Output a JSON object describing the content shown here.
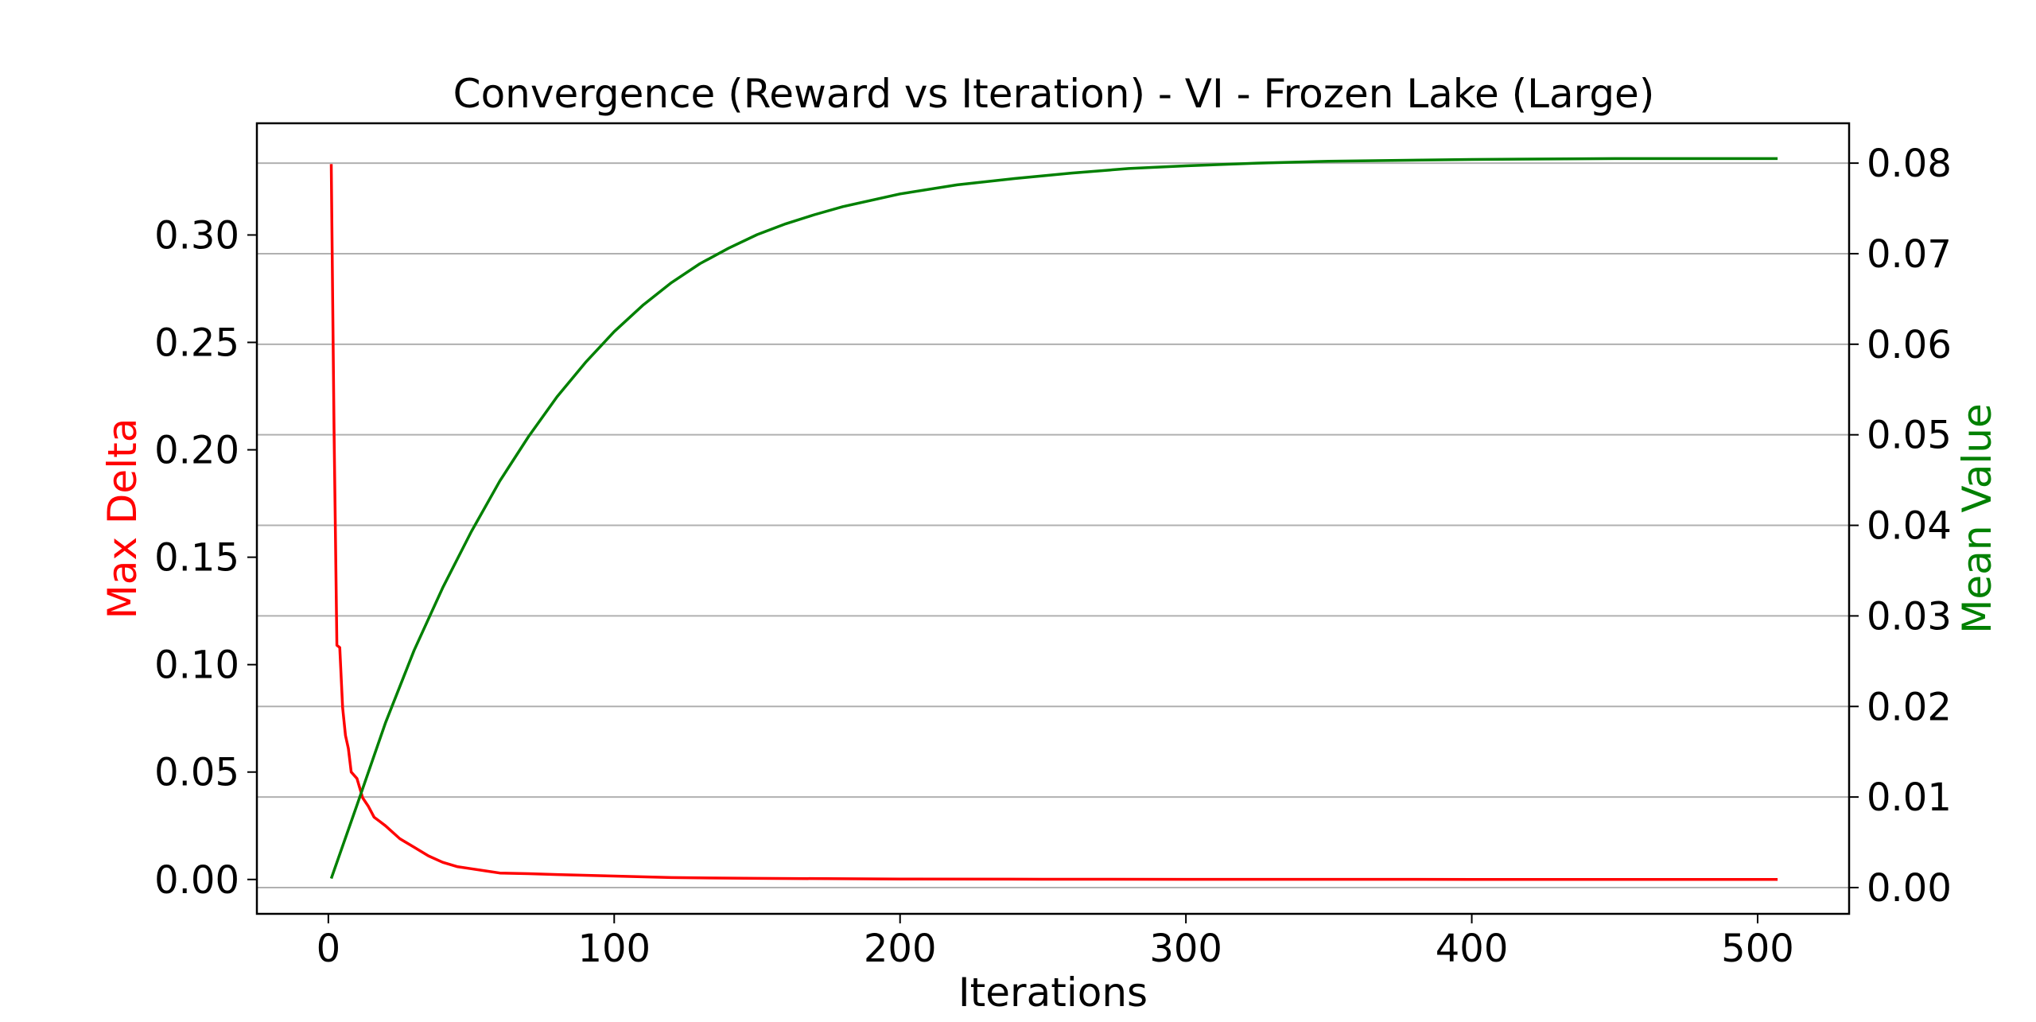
{
  "chart_data": {
    "type": "line",
    "title": "Convergence (Reward vs Iteration) - VI - Frozen Lake (Large)",
    "xlabel": "Iterations",
    "xlim": [
      -25,
      532
    ],
    "xticks": [
      0,
      100,
      200,
      300,
      400,
      500
    ],
    "grid": "horizontal (right axis)",
    "axes": {
      "left": {
        "label": "Max Delta",
        "color": "#ff0000",
        "ylim": [
          -0.016,
          0.352
        ],
        "ticks": [
          "0.00",
          "0.05",
          "0.10",
          "0.15",
          "0.20",
          "0.25",
          "0.30"
        ]
      },
      "right": {
        "label": "Mean Value",
        "color": "#008000",
        "ylim": [
          -0.0029,
          0.0844
        ],
        "ticks": [
          "0.00",
          "0.01",
          "0.02",
          "0.03",
          "0.04",
          "0.05",
          "0.06",
          "0.07",
          "0.08"
        ]
      }
    },
    "series": [
      {
        "axis": "left",
        "color": "#ff0000",
        "x": [
          1,
          2,
          3,
          4,
          5,
          6,
          7,
          8,
          10,
          12,
          14,
          16,
          18,
          20,
          25,
          30,
          35,
          40,
          45,
          50,
          55,
          60,
          70,
          80,
          100,
          120,
          150,
          200,
          250,
          300,
          400,
          507
        ],
        "y": [
          0.333,
          0.21,
          0.109,
          0.108,
          0.08,
          0.067,
          0.061,
          0.05,
          0.047,
          0.038,
          0.034,
          0.029,
          0.027,
          0.025,
          0.019,
          0.015,
          0.011,
          0.008,
          0.006,
          0.005,
          0.004,
          0.003,
          0.0027,
          0.0023,
          0.0016,
          0.0009,
          0.0005,
          0.0002,
          0.0001,
          5e-05,
          2e-05,
          0.0
        ]
      },
      {
        "axis": "right",
        "color": "#008000",
        "x": [
          1,
          10,
          20,
          30,
          40,
          50,
          60,
          70,
          80,
          90,
          100,
          110,
          120,
          130,
          140,
          150,
          160,
          170,
          180,
          200,
          220,
          240,
          260,
          280,
          300,
          325,
          350,
          400,
          450,
          507
        ],
        "y": [
          0.001,
          0.0091,
          0.0182,
          0.0262,
          0.0331,
          0.0393,
          0.0449,
          0.0498,
          0.0542,
          0.058,
          0.0614,
          0.0643,
          0.0668,
          0.0689,
          0.0706,
          0.0721,
          0.0733,
          0.0743,
          0.0752,
          0.0766,
          0.0776,
          0.0783,
          0.0789,
          0.0794,
          0.0797,
          0.08,
          0.0802,
          0.0804,
          0.0805,
          0.0805
        ]
      }
    ]
  }
}
